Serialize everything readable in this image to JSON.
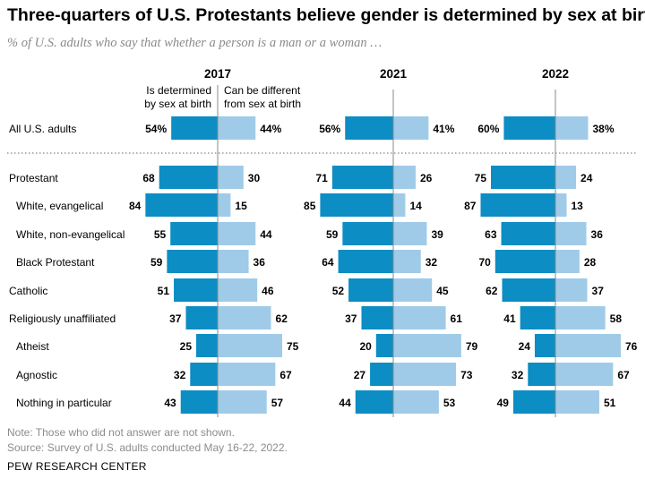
{
  "header": {
    "title": "Three-quarters of U.S. Protestants believe gender is determined by sex at birth",
    "subtitle": "% of U.S. adults who say that whether a person is a man or a woman …"
  },
  "footer": {
    "note": "Note: Those who did not answer are not shown.",
    "source": "Source: Survey of U.S. adults conducted May 16-22, 2022.",
    "org": "PEW RESEARCH CENTER"
  },
  "colors": {
    "determined": "#0c8dc3",
    "different": "#a0cbe8",
    "axis": "#8a8a8a"
  },
  "chart_data": {
    "type": "bar",
    "orientation": "diverging-horizontal",
    "panels": [
      "2017",
      "2021",
      "2022"
    ],
    "legend": [
      "Is determined by sex at birth",
      "Can be different from sex at birth"
    ],
    "categories": [
      {
        "label": "All U.S. adults",
        "indent": false,
        "summary": true
      },
      {
        "label": "Protestant",
        "indent": false
      },
      {
        "label": "White, evangelical",
        "indent": true
      },
      {
        "label": "White, non-evangelical",
        "indent": true
      },
      {
        "label": "Black Protestant",
        "indent": true
      },
      {
        "label": "Catholic",
        "indent": false
      },
      {
        "label": "Religiously unaffiliated",
        "indent": false
      },
      {
        "label": "Atheist",
        "indent": true
      },
      {
        "label": "Agnostic",
        "indent": true
      },
      {
        "label": "Nothing in particular",
        "indent": true
      }
    ],
    "series": [
      {
        "name": "Is determined by sex at birth",
        "values": {
          "2017": [
            54,
            68,
            84,
            55,
            59,
            51,
            37,
            25,
            32,
            43
          ],
          "2021": [
            56,
            71,
            85,
            59,
            64,
            52,
            37,
            20,
            27,
            44
          ],
          "2022": [
            60,
            75,
            87,
            63,
            70,
            62,
            41,
            24,
            32,
            49
          ]
        }
      },
      {
        "name": "Can be different from sex at birth",
        "values": {
          "2017": [
            44,
            30,
            15,
            44,
            36,
            46,
            62,
            75,
            67,
            57
          ],
          "2021": [
            41,
            26,
            14,
            39,
            32,
            45,
            61,
            79,
            73,
            53
          ],
          "2022": [
            38,
            24,
            13,
            36,
            28,
            37,
            58,
            76,
            67,
            51
          ]
        }
      }
    ]
  }
}
